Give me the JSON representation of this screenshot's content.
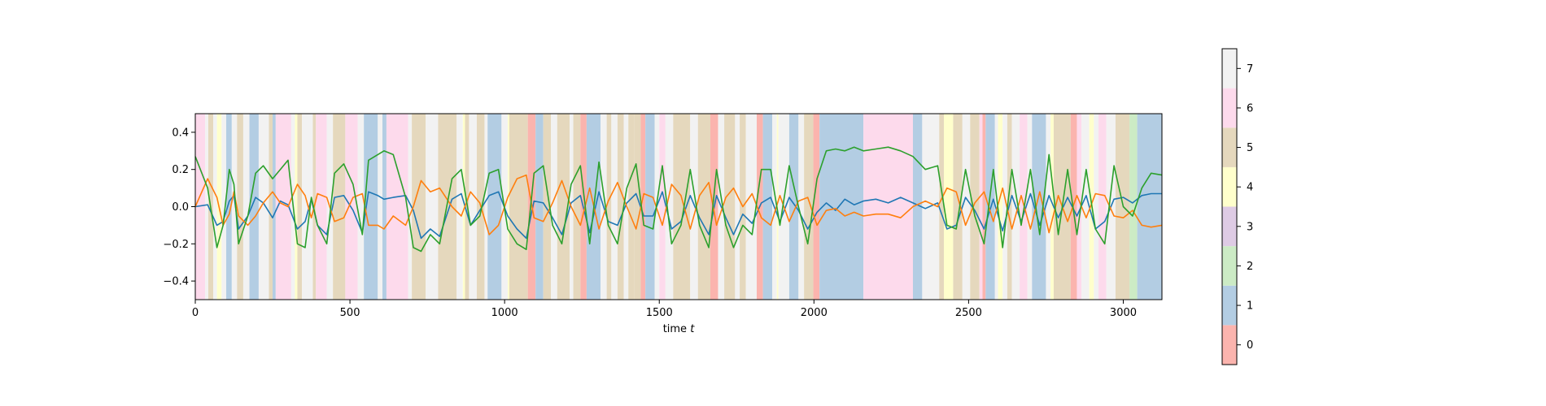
{
  "chart_data": {
    "type": "line",
    "xlabel": "time",
    "xlabel_var": "t",
    "xlim": [
      0,
      3125
    ],
    "ylim": [
      -0.5,
      0.5
    ],
    "x_ticks": [
      0,
      500,
      1000,
      1500,
      2000,
      2500,
      3000
    ],
    "y_ticks": [
      -0.4,
      -0.2,
      0.0,
      0.2,
      0.4
    ],
    "y_tick_labels": [
      "−0.4",
      "−0.2",
      "0.0",
      "0.2",
      "0.4"
    ],
    "grid": false,
    "state_colors": [
      "#fbb4ae",
      "#b3cde3",
      "#ccebc5",
      "#decbe4",
      "#fed9a6",
      "#e5d8bd",
      "#fddaec",
      "#f2f2f2"
    ],
    "state_colors_note": "state 4 rendered as pale yellow #ffffcc",
    "state_colors_actual": [
      "#fbb4ae",
      "#b3cde3",
      "#ccebc5",
      "#decbe4",
      "#ffffcc",
      "#e5d8bd",
      "#fddaec",
      "#f2f2f2"
    ],
    "colorbar": {
      "label_values": [
        0,
        1,
        2,
        3,
        4,
        5,
        6,
        7
      ],
      "tick_labels": [
        "0",
        "1",
        "2",
        "3",
        "4",
        "5",
        "6",
        "7"
      ],
      "placement": "right"
    },
    "state_segments": [
      [
        0,
        32,
        6
      ],
      [
        32,
        42,
        7
      ],
      [
        42,
        58,
        5
      ],
      [
        58,
        70,
        7
      ],
      [
        70,
        85,
        4
      ],
      [
        85,
        100,
        7
      ],
      [
        100,
        118,
        1
      ],
      [
        118,
        135,
        7
      ],
      [
        135,
        155,
        5
      ],
      [
        155,
        175,
        7
      ],
      [
        175,
        205,
        1
      ],
      [
        205,
        238,
        7
      ],
      [
        238,
        250,
        5
      ],
      [
        250,
        260,
        1
      ],
      [
        260,
        310,
        6
      ],
      [
        310,
        322,
        7
      ],
      [
        322,
        330,
        4
      ],
      [
        330,
        345,
        5
      ],
      [
        345,
        380,
        7
      ],
      [
        380,
        390,
        5
      ],
      [
        390,
        425,
        6
      ],
      [
        425,
        445,
        7
      ],
      [
        445,
        485,
        5
      ],
      [
        485,
        525,
        6
      ],
      [
        525,
        545,
        7
      ],
      [
        545,
        590,
        1
      ],
      [
        590,
        605,
        7
      ],
      [
        605,
        618,
        1
      ],
      [
        618,
        688,
        6
      ],
      [
        688,
        700,
        7
      ],
      [
        700,
        745,
        5
      ],
      [
        745,
        785,
        7
      ],
      [
        785,
        845,
        5
      ],
      [
        845,
        865,
        7
      ],
      [
        865,
        872,
        4
      ],
      [
        872,
        885,
        5
      ],
      [
        885,
        910,
        7
      ],
      [
        910,
        935,
        5
      ],
      [
        935,
        945,
        7
      ],
      [
        945,
        990,
        1
      ],
      [
        990,
        1010,
        7
      ],
      [
        1010,
        1015,
        4
      ],
      [
        1015,
        1075,
        5
      ],
      [
        1075,
        1100,
        0
      ],
      [
        1100,
        1125,
        1
      ],
      [
        1125,
        1150,
        5
      ],
      [
        1150,
        1170,
        7
      ],
      [
        1170,
        1210,
        5
      ],
      [
        1210,
        1222,
        7
      ],
      [
        1222,
        1245,
        5
      ],
      [
        1245,
        1265,
        0
      ],
      [
        1265,
        1310,
        1
      ],
      [
        1310,
        1330,
        7
      ],
      [
        1330,
        1345,
        5
      ],
      [
        1345,
        1365,
        7
      ],
      [
        1365,
        1385,
        5
      ],
      [
        1385,
        1400,
        7
      ],
      [
        1400,
        1420,
        5
      ],
      [
        1420,
        1440,
        5
      ],
      [
        1440,
        1455,
        0
      ],
      [
        1455,
        1485,
        1
      ],
      [
        1485,
        1500,
        7
      ],
      [
        1500,
        1520,
        6
      ],
      [
        1520,
        1545,
        7
      ],
      [
        1545,
        1600,
        5
      ],
      [
        1600,
        1625,
        7
      ],
      [
        1625,
        1665,
        5
      ],
      [
        1665,
        1690,
        0
      ],
      [
        1690,
        1710,
        7
      ],
      [
        1710,
        1745,
        5
      ],
      [
        1745,
        1760,
        7
      ],
      [
        1760,
        1780,
        5
      ],
      [
        1780,
        1815,
        7
      ],
      [
        1815,
        1835,
        0
      ],
      [
        1835,
        1865,
        1
      ],
      [
        1865,
        1880,
        7
      ],
      [
        1880,
        1885,
        4
      ],
      [
        1885,
        1920,
        7
      ],
      [
        1920,
        1950,
        1
      ],
      [
        1950,
        1968,
        7
      ],
      [
        1968,
        1998,
        5
      ],
      [
        1998,
        2018,
        0
      ],
      [
        2018,
        2160,
        1
      ],
      [
        2160,
        2320,
        6
      ],
      [
        2320,
        2350,
        1
      ],
      [
        2350,
        2405,
        7
      ],
      [
        2405,
        2420,
        5
      ],
      [
        2420,
        2450,
        4
      ],
      [
        2450,
        2480,
        5
      ],
      [
        2480,
        2505,
        7
      ],
      [
        2505,
        2535,
        5
      ],
      [
        2535,
        2545,
        6
      ],
      [
        2545,
        2555,
        0
      ],
      [
        2555,
        2585,
        1
      ],
      [
        2585,
        2595,
        7
      ],
      [
        2595,
        2610,
        4
      ],
      [
        2610,
        2625,
        7
      ],
      [
        2625,
        2640,
        5
      ],
      [
        2640,
        2665,
        7
      ],
      [
        2665,
        2690,
        6
      ],
      [
        2690,
        2705,
        7
      ],
      [
        2705,
        2750,
        1
      ],
      [
        2750,
        2765,
        7
      ],
      [
        2765,
        2775,
        4
      ],
      [
        2775,
        2830,
        5
      ],
      [
        2830,
        2850,
        0
      ],
      [
        2850,
        2865,
        6
      ],
      [
        2865,
        2890,
        7
      ],
      [
        2890,
        2905,
        4
      ],
      [
        2905,
        2920,
        7
      ],
      [
        2920,
        2945,
        6
      ],
      [
        2945,
        2975,
        7
      ],
      [
        2975,
        3020,
        5
      ],
      [
        3020,
        3045,
        2
      ],
      [
        3045,
        3125,
        1
      ]
    ],
    "series": [
      {
        "color": "#1f77b4",
        "x": [
          0,
          40,
          70,
          90,
          110,
          125,
          140,
          170,
          195,
          220,
          250,
          275,
          300,
          330,
          355,
          375,
          395,
          425,
          450,
          480,
          510,
          540,
          560,
          590,
          610,
          640,
          680,
          705,
          730,
          760,
          790,
          830,
          860,
          890,
          920,
          950,
          980,
          1010,
          1040,
          1070,
          1095,
          1125,
          1155,
          1185,
          1215,
          1245,
          1275,
          1305,
          1335,
          1365,
          1395,
          1425,
          1450,
          1480,
          1510,
          1540,
          1570,
          1600,
          1630,
          1660,
          1685,
          1715,
          1740,
          1770,
          1800,
          1830,
          1860,
          1890,
          1920,
          1950,
          1980,
          2010,
          2040,
          2070,
          2100,
          2130,
          2160,
          2200,
          2240,
          2280,
          2320,
          2360,
          2400,
          2430,
          2460,
          2490,
          2520,
          2550,
          2580,
          2610,
          2640,
          2670,
          2700,
          2730,
          2760,
          2790,
          2820,
          2850,
          2880,
          2910,
          2940,
          2970,
          3000,
          3030,
          3060,
          3090,
          3125
        ],
        "y": [
          0.0,
          0.01,
          -0.1,
          -0.08,
          0.03,
          0.06,
          -0.12,
          -0.05,
          0.05,
          0.02,
          -0.06,
          0.03,
          0.01,
          -0.12,
          -0.08,
          0.04,
          -0.1,
          -0.15,
          0.05,
          0.06,
          -0.02,
          -0.14,
          0.08,
          0.06,
          0.04,
          0.05,
          0.06,
          -0.02,
          -0.17,
          -0.12,
          -0.16,
          0.04,
          0.07,
          -0.1,
          -0.02,
          0.06,
          0.08,
          -0.05,
          -0.12,
          -0.17,
          0.03,
          0.02,
          -0.06,
          -0.15,
          0.02,
          0.06,
          -0.14,
          0.08,
          -0.08,
          -0.1,
          0.02,
          0.07,
          -0.05,
          -0.05,
          0.08,
          -0.12,
          -0.08,
          0.06,
          -0.06,
          -0.15,
          0.06,
          -0.06,
          -0.15,
          -0.04,
          -0.09,
          0.02,
          0.05,
          -0.08,
          0.05,
          -0.02,
          -0.12,
          -0.03,
          0.02,
          -0.02,
          0.04,
          0.01,
          0.03,
          0.04,
          0.02,
          0.05,
          0.02,
          -0.01,
          0.02,
          -0.12,
          -0.1,
          0.05,
          -0.02,
          -0.12,
          0.04,
          -0.13,
          0.06,
          -0.08,
          0.07,
          -0.1,
          0.06,
          -0.06,
          0.05,
          -0.05,
          0.06,
          -0.12,
          -0.08,
          0.04,
          0.05,
          0.02,
          0.06,
          0.07,
          0.07
        ]
      },
      {
        "color": "#ff7f0e",
        "x": [
          0,
          40,
          70,
          90,
          110,
          125,
          140,
          170,
          195,
          220,
          250,
          275,
          300,
          330,
          355,
          375,
          395,
          425,
          450,
          480,
          510,
          540,
          560,
          590,
          610,
          640,
          680,
          705,
          730,
          760,
          790,
          830,
          860,
          890,
          920,
          950,
          980,
          1010,
          1040,
          1070,
          1095,
          1125,
          1155,
          1185,
          1215,
          1245,
          1275,
          1305,
          1335,
          1365,
          1395,
          1425,
          1450,
          1480,
          1510,
          1540,
          1570,
          1600,
          1630,
          1660,
          1685,
          1715,
          1740,
          1770,
          1800,
          1830,
          1860,
          1890,
          1920,
          1950,
          1980,
          2010,
          2040,
          2070,
          2100,
          2130,
          2160,
          2200,
          2240,
          2280,
          2320,
          2360,
          2400,
          2430,
          2460,
          2490,
          2520,
          2550,
          2580,
          2610,
          2640,
          2670,
          2700,
          2730,
          2760,
          2790,
          2820,
          2850,
          2880,
          2910,
          2940,
          2970,
          3000,
          3030,
          3060,
          3090,
          3125
        ],
        "y": [
          0.0,
          0.15,
          0.05,
          -0.1,
          -0.04,
          0.08,
          -0.05,
          -0.1,
          -0.05,
          0.02,
          0.08,
          0.02,
          0.0,
          0.12,
          0.06,
          -0.06,
          0.07,
          0.05,
          -0.08,
          -0.06,
          0.05,
          0.07,
          -0.1,
          -0.1,
          -0.12,
          -0.05,
          -0.1,
          0.0,
          0.14,
          0.08,
          0.1,
          0.0,
          -0.05,
          0.08,
          0.02,
          -0.15,
          -0.1,
          0.05,
          0.15,
          0.17,
          -0.06,
          -0.08,
          0.02,
          0.14,
          0.0,
          -0.1,
          0.1,
          -0.12,
          0.03,
          0.13,
          0.0,
          -0.12,
          0.07,
          0.05,
          -0.1,
          0.12,
          0.06,
          -0.12,
          0.06,
          0.13,
          -0.1,
          0.05,
          0.1,
          0.0,
          0.07,
          -0.06,
          -0.1,
          0.06,
          -0.08,
          0.03,
          0.05,
          -0.1,
          -0.02,
          -0.01,
          -0.05,
          -0.03,
          -0.05,
          -0.04,
          -0.04,
          -0.06,
          0.0,
          0.03,
          0.0,
          0.1,
          0.08,
          -0.1,
          0.02,
          0.08,
          -0.08,
          0.1,
          -0.12,
          0.06,
          -0.12,
          0.08,
          -0.14,
          0.06,
          -0.08,
          0.06,
          -0.06,
          0.07,
          0.06,
          -0.05,
          -0.06,
          -0.02,
          -0.1,
          -0.11,
          -0.1
        ]
      },
      {
        "color": "#2ca02c",
        "x": [
          0,
          40,
          70,
          90,
          110,
          125,
          140,
          170,
          195,
          220,
          250,
          275,
          300,
          330,
          355,
          375,
          395,
          425,
          450,
          480,
          510,
          540,
          560,
          590,
          610,
          640,
          680,
          705,
          730,
          760,
          790,
          830,
          860,
          890,
          920,
          950,
          980,
          1010,
          1040,
          1070,
          1095,
          1125,
          1155,
          1185,
          1215,
          1245,
          1275,
          1305,
          1335,
          1365,
          1395,
          1425,
          1450,
          1480,
          1510,
          1540,
          1570,
          1600,
          1630,
          1660,
          1685,
          1715,
          1740,
          1770,
          1800,
          1830,
          1860,
          1890,
          1920,
          1950,
          1980,
          2010,
          2040,
          2070,
          2100,
          2130,
          2160,
          2200,
          2240,
          2280,
          2320,
          2360,
          2400,
          2430,
          2460,
          2490,
          2520,
          2550,
          2580,
          2610,
          2640,
          2670,
          2700,
          2730,
          2760,
          2790,
          2820,
          2850,
          2880,
          2910,
          2940,
          2970,
          3000,
          3030,
          3060,
          3090,
          3125
        ],
        "y": [
          0.27,
          0.1,
          -0.22,
          -0.1,
          0.2,
          0.12,
          -0.2,
          -0.05,
          0.18,
          0.22,
          0.15,
          0.2,
          0.25,
          -0.2,
          -0.22,
          0.05,
          -0.1,
          -0.2,
          0.18,
          0.23,
          0.12,
          -0.15,
          0.25,
          0.28,
          0.3,
          0.28,
          0.05,
          -0.22,
          -0.24,
          -0.15,
          -0.2,
          0.15,
          0.2,
          -0.1,
          -0.05,
          0.18,
          0.2,
          -0.12,
          -0.2,
          -0.23,
          0.18,
          0.22,
          -0.1,
          -0.2,
          0.12,
          0.22,
          -0.2,
          0.24,
          -0.1,
          -0.2,
          0.1,
          0.23,
          -0.1,
          -0.12,
          0.22,
          -0.2,
          -0.1,
          0.2,
          -0.1,
          -0.22,
          0.2,
          -0.1,
          -0.22,
          -0.1,
          -0.15,
          0.2,
          0.2,
          -0.1,
          0.22,
          0.0,
          -0.2,
          0.15,
          0.3,
          0.31,
          0.3,
          0.32,
          0.3,
          0.31,
          0.32,
          0.3,
          0.27,
          0.2,
          0.22,
          -0.1,
          -0.12,
          0.2,
          -0.05,
          -0.2,
          0.2,
          -0.22,
          0.2,
          -0.1,
          0.2,
          -0.15,
          0.28,
          -0.15,
          0.2,
          -0.15,
          0.2,
          -0.12,
          -0.2,
          0.22,
          0.0,
          -0.05,
          0.1,
          0.18,
          0.17
        ]
      }
    ]
  }
}
